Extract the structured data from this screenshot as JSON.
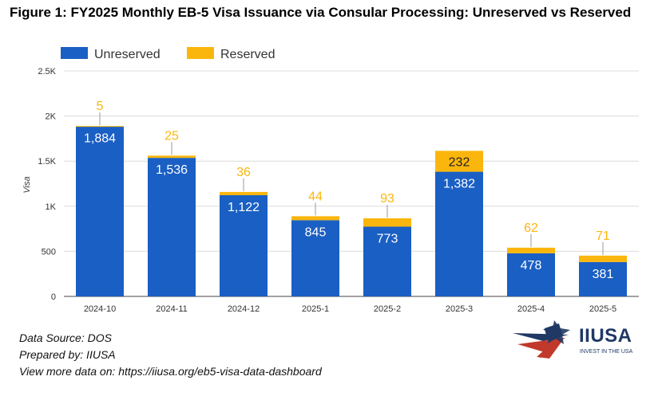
{
  "title": "Figure 1: FY2025 Monthly EB-5 Visa Issuance via Consular Processing: Unreserved vs Reserved",
  "chart_data": {
    "type": "bar",
    "stacked": true,
    "categories": [
      "2024-10",
      "2024-11",
      "2024-12",
      "2025-1",
      "2025-2",
      "2025-3",
      "2025-4",
      "2025-5"
    ],
    "series": [
      {
        "name": "Unreserved",
        "color": "#1a5fc4",
        "values": [
          1884,
          1536,
          1122,
          845,
          773,
          1382,
          478,
          381
        ],
        "labels": [
          "1,884",
          "1,536",
          "1,122",
          "845",
          "773",
          "1,382",
          "478",
          "381"
        ]
      },
      {
        "name": "Reserved",
        "color": "#fbb60d",
        "values": [
          5,
          25,
          36,
          44,
          93,
          232,
          62,
          71
        ],
        "labels": [
          "5",
          "25",
          "36",
          "44",
          "93",
          "232",
          "62",
          "71"
        ]
      }
    ],
    "ylabel": "Visa",
    "xlabel": "",
    "ylim": [
      0,
      2500
    ],
    "yticks": [
      0,
      500,
      1000,
      1500,
      2000,
      2500
    ],
    "ytick_labels": [
      "0",
      "500",
      "1K",
      "1.5K",
      "2K",
      "2.5K"
    ],
    "legend": "top-left",
    "grid": true
  },
  "footer": {
    "source": "Data Source: DOS",
    "prepared": "Prepared by: IIUSA",
    "more": "View more data on: https://iiusa.org/eb5-visa-data-dashboard"
  },
  "logo": {
    "name": "IIUSA",
    "tagline": "INVEST IN THE USA"
  }
}
